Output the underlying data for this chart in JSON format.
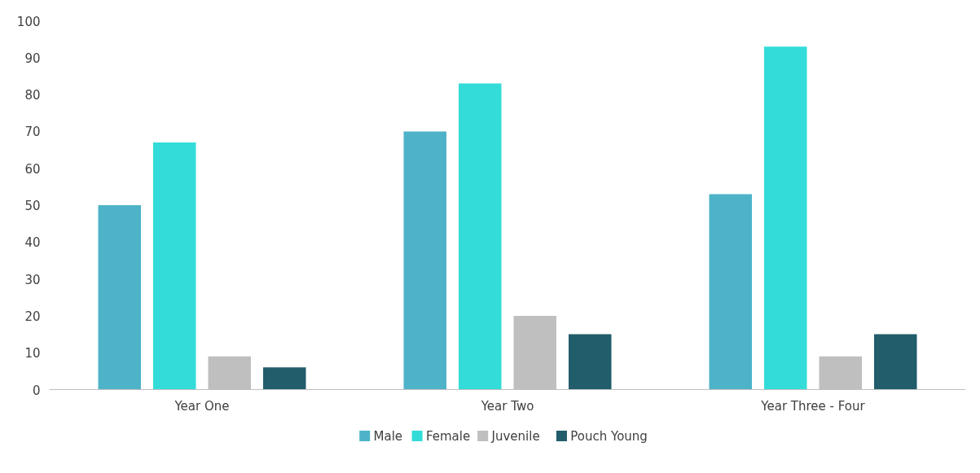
{
  "chart_data": {
    "type": "bar",
    "categories": [
      "Year One",
      "Year Two",
      "Year Three - Four"
    ],
    "series": [
      {
        "name": "Male",
        "color": "#4eb3c8",
        "values": [
          50,
          70,
          53
        ]
      },
      {
        "name": "Female",
        "color": "#33dcd8",
        "values": [
          67,
          83,
          93
        ]
      },
      {
        "name": "Juvenile",
        "color": "#bfbfbf",
        "values": [
          9,
          20,
          9
        ]
      },
      {
        "name": "Pouch Young",
        "color": "#215d6b",
        "values": [
          6,
          15,
          15
        ]
      }
    ],
    "ylim": [
      0,
      100
    ],
    "yticks": [
      0,
      10,
      20,
      30,
      40,
      50,
      60,
      70,
      80,
      90,
      100
    ],
    "grid": false,
    "legend": "bottom"
  }
}
